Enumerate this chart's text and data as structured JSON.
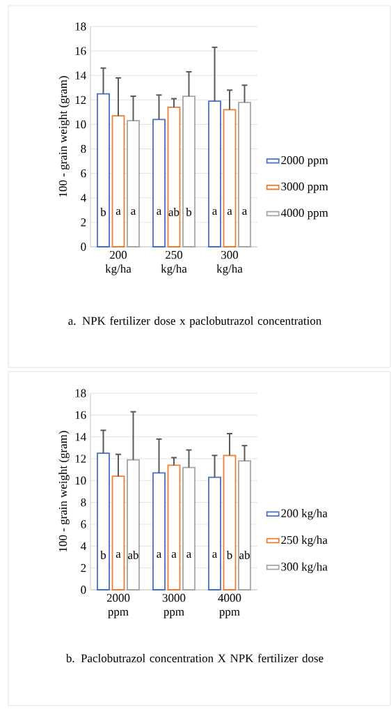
{
  "chart_data": [
    {
      "type": "bar",
      "title": "a. NPK fertilizer dose x paclobutrazol concentration",
      "ylabel": "100 - grain weight (gram)",
      "categories": [
        "200 kg/ha",
        "250 kg/ha",
        "300 kg/ha"
      ],
      "series": [
        {
          "name": "2000 ppm",
          "color": "#4472c4",
          "values": [
            12.5,
            10.4,
            11.9
          ],
          "errors": [
            [
              12.5,
              14.6
            ],
            [
              10.4,
              12.4
            ],
            [
              11.9,
              16.3
            ]
          ],
          "value_labels": [
            "b",
            "a",
            "a"
          ]
        },
        {
          "name": "3000 ppm",
          "color": "#ed7d31",
          "values": [
            10.7,
            11.4,
            11.2
          ],
          "errors": [
            [
              10.7,
              13.8
            ],
            [
              11.4,
              12.1
            ],
            [
              11.2,
              12.8
            ]
          ],
          "value_labels": [
            "a",
            "ab",
            "a"
          ]
        },
        {
          "name": "4000 ppm",
          "color": "#a5a5a5",
          "values": [
            10.3,
            12.3,
            11.8
          ],
          "errors": [
            [
              10.3,
              12.3
            ],
            [
              12.3,
              14.3
            ],
            [
              11.8,
              13.2
            ]
          ],
          "value_labels": [
            "a",
            "b",
            "a"
          ]
        }
      ],
      "ylim": [
        0,
        18
      ],
      "yticks": [
        0,
        2,
        4,
        6,
        8,
        10,
        12,
        14,
        16,
        18
      ],
      "grid": "y",
      "legend": "right"
    },
    {
      "type": "bar",
      "title": "b. Paclobutrazol concentration X NPK fertilizer dose",
      "ylabel": "100 - grain weight (gram)",
      "categories": [
        "2000 ppm",
        "3000 ppm",
        "4000 ppm"
      ],
      "series": [
        {
          "name": "200 kg/ha",
          "color": "#4472c4",
          "values": [
            12.5,
            10.7,
            10.3
          ],
          "errors": [
            [
              12.5,
              14.6
            ],
            [
              10.7,
              13.8
            ],
            [
              10.3,
              12.3
            ]
          ],
          "value_labels": [
            "b",
            "a",
            "a"
          ]
        },
        {
          "name": "250 kg/ha",
          "color": "#ed7d31",
          "values": [
            10.4,
            11.4,
            12.3
          ],
          "errors": [
            [
              10.4,
              12.4
            ],
            [
              11.4,
              12.1
            ],
            [
              12.3,
              14.3
            ]
          ],
          "value_labels": [
            "a",
            "a",
            "b"
          ]
        },
        {
          "name": "300 kg/ha",
          "color": "#a5a5a5",
          "values": [
            11.9,
            11.2,
            11.8
          ],
          "errors": [
            [
              11.9,
              16.3
            ],
            [
              11.2,
              12.8
            ],
            [
              11.8,
              13.2
            ]
          ],
          "value_labels": [
            "ab",
            "a",
            "ab"
          ]
        }
      ],
      "ylim": [
        0,
        18
      ],
      "yticks": [
        0,
        2,
        4,
        6,
        8,
        10,
        12,
        14,
        16,
        18
      ],
      "grid": "y",
      "legend": "right"
    }
  ]
}
